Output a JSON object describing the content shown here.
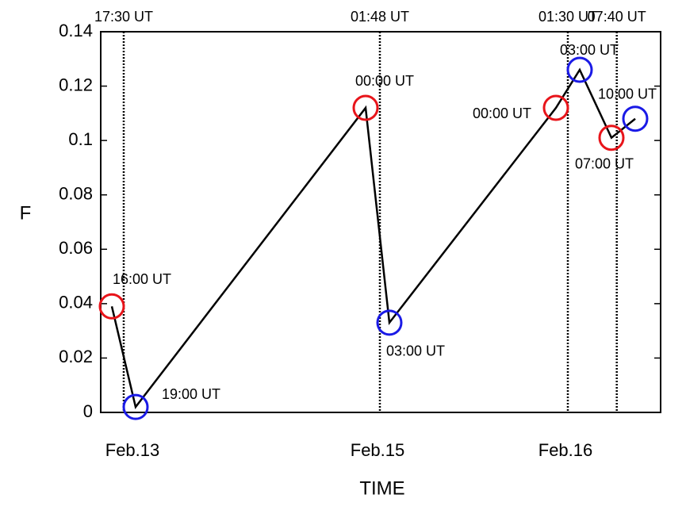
{
  "chart_data": {
    "type": "line",
    "x_label": "TIME",
    "y_label": "F",
    "x": [
      16,
      19,
      48,
      51,
      72,
      75,
      79,
      82
    ],
    "values": [
      0.039,
      0.002,
      0.112,
      0.033,
      0.112,
      0.126,
      0.101,
      0.108
    ],
    "color": "#000000",
    "marker_colors": [
      "#e8141a",
      "#1a1ae6",
      "#e8141a",
      "#1a1ae6",
      "#e8141a",
      "#1a1ae6",
      "#e8141a",
      "#1a1ae6"
    ],
    "point_labels": [
      "16:00 UT",
      "19:00 UT",
      "00:00 UT",
      "03:00 UT",
      "00:00 UT",
      "03:00 UT",
      "07:00 UT",
      "10:00 UT"
    ],
    "vlines": [
      {
        "x": 17.5,
        "label": "17:30 UT"
      },
      {
        "x": 49.8,
        "label": "01:48 UT"
      },
      {
        "x": 73.5,
        "label": "01:30 UT"
      },
      {
        "x": 79.67,
        "label": "07:40 UT"
      }
    ],
    "xlim": [
      14.6,
      85.2
    ],
    "xticks": [
      {
        "value": 18.6,
        "label": "Feb.13"
      },
      {
        "value": 49.5,
        "label": "Feb.15"
      },
      {
        "value": 73.2,
        "label": "Feb.16"
      }
    ],
    "ylim": [
      0,
      0.14
    ],
    "yticks": [
      0,
      0.02,
      0.04,
      0.06,
      0.08,
      0.1,
      0.12,
      0.14
    ]
  }
}
